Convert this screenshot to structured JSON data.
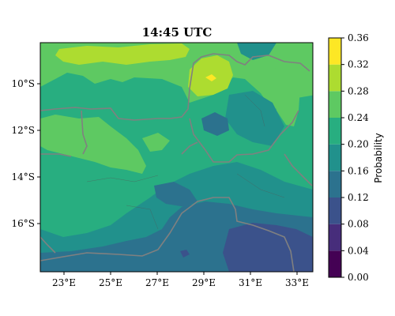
{
  "map": {
    "title": "14:45 UTC",
    "lon_ticks": [
      "23°E",
      "25°E",
      "27°E",
      "29°E",
      "31°E",
      "33°E"
    ],
    "lat_ticks": [
      "10°S",
      "12°S",
      "14°S",
      "16°S"
    ],
    "colorbar": {
      "label": "Probability",
      "levels": [
        0.0,
        0.04,
        0.08,
        0.12,
        0.16,
        0.2,
        0.24,
        0.28,
        0.32,
        0.36
      ],
      "tick_labels": [
        "0.00",
        "0.04",
        "0.08",
        "0.12",
        "0.16",
        "0.20",
        "0.24",
        "0.28",
        "0.32",
        "0.36"
      ],
      "colors": [
        "#440154",
        "#472d7b",
        "#3b528b",
        "#2c728e",
        "#21918c",
        "#28ae80",
        "#5ec962",
        "#addc30",
        "#fde725"
      ]
    },
    "colormap": "viridis",
    "border_color": "#808080"
  }
}
